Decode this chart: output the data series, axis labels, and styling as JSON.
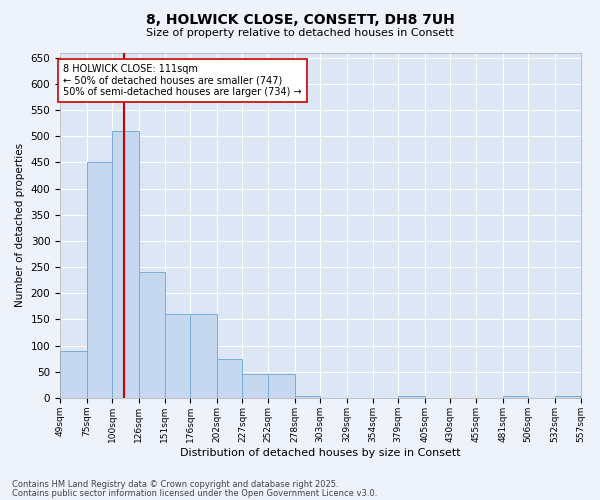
{
  "title1": "8, HOLWICK CLOSE, CONSETT, DH8 7UH",
  "title2": "Size of property relative to detached houses in Consett",
  "xlabel": "Distribution of detached houses by size in Consett",
  "ylabel": "Number of detached properties",
  "bar_color": "#c5d8ef",
  "bar_edge_color": "#7aaed4",
  "vline_color": "#cc0000",
  "vline_x": 111,
  "annotation_line1": "8 HOLWICK CLOSE: 111sqm",
  "annotation_line2": "← 50% of detached houses are smaller (747)",
  "annotation_line3": "50% of semi-detached houses are larger (734) →",
  "background_color": "#dce6f5",
  "grid_color": "#ffffff",
  "footer1": "Contains HM Land Registry data © Crown copyright and database right 2025.",
  "footer2": "Contains public sector information licensed under the Open Government Licence v3.0.",
  "bin_edges": [
    49,
    75,
    100,
    126,
    151,
    176,
    202,
    227,
    252,
    278,
    303,
    329,
    354,
    379,
    405,
    430,
    455,
    481,
    506,
    532,
    557
  ],
  "bar_heights": [
    90,
    450,
    510,
    240,
    160,
    160,
    75,
    45,
    45,
    3,
    0,
    0,
    0,
    3,
    0,
    0,
    0,
    3,
    0,
    3
  ],
  "ylim": [
    0,
    660
  ],
  "yticks": [
    0,
    50,
    100,
    150,
    200,
    250,
    300,
    350,
    400,
    450,
    500,
    550,
    600,
    650
  ],
  "fig_bg": "#eef2fa"
}
